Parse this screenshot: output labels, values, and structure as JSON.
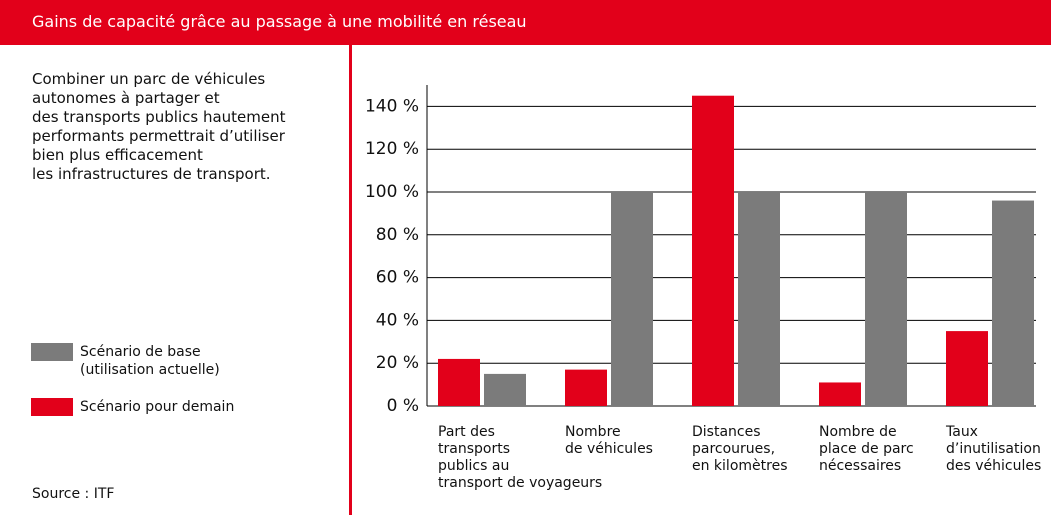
{
  "header": {
    "title": "Gains de capacité grâce au passage à une mobilité en réseau"
  },
  "description": "Combiner un parc de véhicules\nautonomes à partager et\ndes transports publics hautement\nperformants permettrait d’utiliser\nbien plus efficacement\nles infrastructures de transport.",
  "source": "Source : ITF",
  "chart_data": {
    "type": "bar",
    "categories": [
      "Part des\ntransports\npublics au\ntransport de voyageurs",
      "Nombre\nde véhicules",
      "Distances\nparcourues,\nen kilomètres",
      "Nombre de\nplace de parc\nnécessaires",
      "Taux\nd’inutilisation\ndes véhicules"
    ],
    "series": [
      {
        "name": "Scénario de base\n(utilisation actuelle)",
        "color": "#7b7b7b",
        "values": [
          15,
          100,
          100,
          100,
          96
        ]
      },
      {
        "name": "Scénario pour demain",
        "color": "#e2001a",
        "values": [
          22,
          17,
          145,
          11,
          35
        ]
      }
    ],
    "ylim": [
      0,
      150
    ],
    "yticks": [
      {
        "value": 0,
        "label": "0 %"
      },
      {
        "value": 20,
        "label": "20 %"
      },
      {
        "value": 40,
        "label": "40 %"
      },
      {
        "value": 60,
        "label": "60 %"
      },
      {
        "value": 80,
        "label": "80 %"
      },
      {
        "value": 100,
        "label": "100 %"
      },
      {
        "value": 120,
        "label": "120 %"
      },
      {
        "value": 140,
        "label": "140 %"
      }
    ],
    "grid": true
  }
}
